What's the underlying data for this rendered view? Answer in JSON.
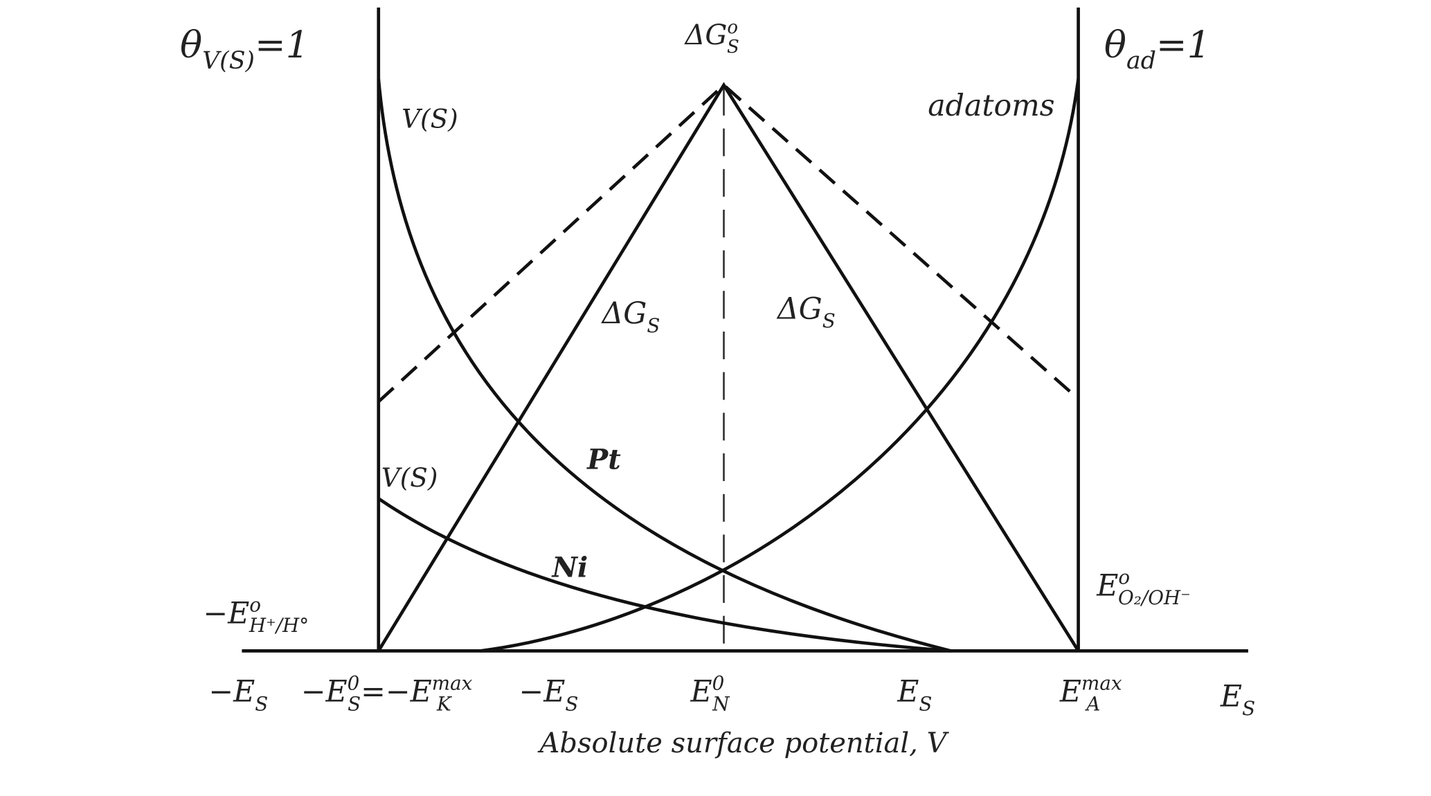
{
  "labels": [
    {
      "parts": [
        {
          "text": "θ"
        },
        {
          "text": "V(S)",
          "sub": true
        },
        {
          "text": "=1"
        }
      ]
    },
    {
      "parts": [
        {
          "text": "ΔG"
        },
        {
          "text": "o",
          "sup": true
        },
        {
          "text": "S",
          "sub": true
        }
      ]
    },
    {
      "parts": [
        {
          "text": "θ"
        },
        {
          "text": "ad",
          "sub": true
        },
        {
          "text": "=1"
        }
      ]
    },
    {
      "parts": [
        {
          "text": "V(S)"
        }
      ]
    },
    {
      "parts": [
        {
          "text": "adatoms"
        }
      ]
    },
    {
      "parts": [
        {
          "text": "ΔG"
        },
        {
          "text": "S",
          "sub": true
        }
      ]
    },
    {
      "parts": [
        {
          "text": "ΔG"
        },
        {
          "text": "S",
          "sub": true
        }
      ]
    },
    {
      "parts": [
        {
          "text": "Pt"
        }
      ]
    },
    {
      "parts": [
        {
          "text": "V(S)"
        }
      ]
    },
    {
      "parts": [
        {
          "text": "Ni"
        }
      ]
    },
    {
      "parts": [
        {
          "text": "−E"
        },
        {
          "text": "o",
          "sup": true
        },
        {
          "text": "H⁺/H°",
          "sub": true
        }
      ]
    },
    {
      "parts": [
        {
          "text": "E"
        },
        {
          "text": "o",
          "sup": true
        },
        {
          "text": "O₂/OH⁻",
          "sub": true
        }
      ]
    },
    {
      "parts": [
        {
          "text": "−E"
        },
        {
          "text": "S",
          "sub": true
        }
      ]
    },
    {
      "parts": [
        {
          "text": "−E"
        },
        {
          "text": "0",
          "sup": true
        },
        {
          "text": "S",
          "sub": true
        },
        {
          "text": "=−E"
        },
        {
          "text": "max",
          "sup": true
        },
        {
          "text": "K",
          "sub": true
        }
      ]
    },
    {
      "parts": [
        {
          "text": "−E"
        },
        {
          "text": "S",
          "sub": true
        }
      ]
    },
    {
      "parts": [
        {
          "text": "E"
        },
        {
          "text": "0",
          "sup": true
        },
        {
          "text": "N",
          "sub": true
        }
      ]
    },
    {
      "parts": [
        {
          "text": "E"
        },
        {
          "text": "S",
          "sub": true
        }
      ]
    },
    {
      "parts": [
        {
          "text": "E"
        },
        {
          "text": "max",
          "sup": true
        },
        {
          "text": "A",
          "sub": true
        }
      ]
    },
    {
      "parts": [
        {
          "text": "E"
        },
        {
          "text": "S",
          "sub": true
        }
      ]
    }
  ],
  "axis_title": "Absolute surface potential, V"
}
